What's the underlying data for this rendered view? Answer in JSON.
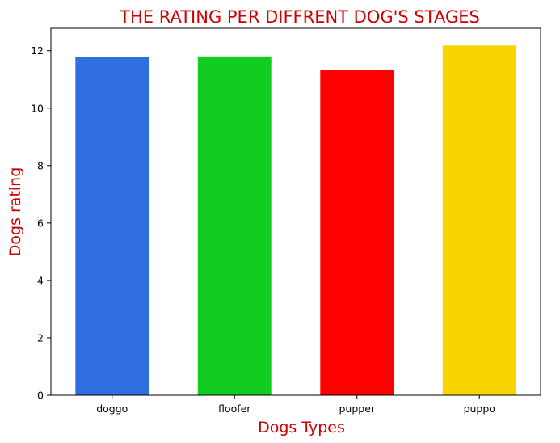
{
  "chart_data": {
    "type": "bar",
    "title": "THE RATING PER DIFFRENT DOG'S STAGES",
    "xlabel": "Dogs Types",
    "ylabel": "Dogs rating",
    "categories": [
      "doggo",
      "floofer",
      "pupper",
      "puppo"
    ],
    "values": [
      11.78,
      11.8,
      11.33,
      12.18
    ],
    "colors": [
      "#2f6fe0",
      "#12cc20",
      "#ff0000",
      "#f9d500"
    ],
    "ylim": [
      0,
      12.78
    ],
    "yticks": [
      0,
      2,
      4,
      6,
      8,
      10,
      12
    ],
    "grid": false,
    "text_color": "#cc0000"
  }
}
